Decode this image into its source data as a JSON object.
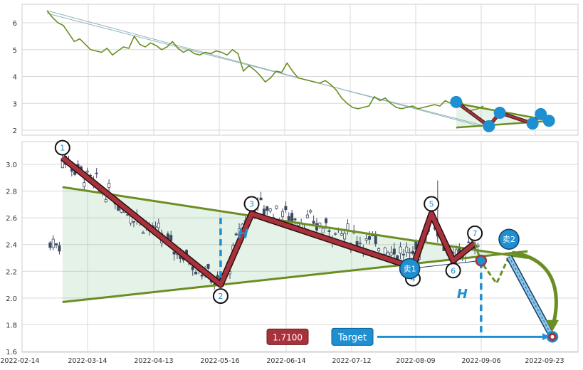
{
  "chart_data": [
    {
      "type": "line",
      "panel": "overview",
      "ylim": [
        1.8,
        6.6
      ],
      "y_ticks": [
        "2",
        "3",
        "4",
        "5",
        "6"
      ],
      "grid": true,
      "series": [
        {
          "color": "#6b8e23",
          "points": [
            [
              0,
              6.45
            ],
            [
              2,
              6.2
            ],
            [
              4,
              6.0
            ],
            [
              6,
              5.9
            ],
            [
              8,
              5.6
            ],
            [
              10,
              5.3
            ],
            [
              12,
              5.4
            ],
            [
              14,
              5.2
            ],
            [
              16,
              5.0
            ],
            [
              18,
              4.95
            ],
            [
              20,
              4.9
            ],
            [
              22,
              5.05
            ],
            [
              24,
              4.8
            ],
            [
              26,
              4.95
            ],
            [
              28,
              5.1
            ],
            [
              30,
              5.05
            ],
            [
              32,
              5.5
            ],
            [
              34,
              5.2
            ],
            [
              36,
              5.1
            ],
            [
              38,
              5.25
            ],
            [
              40,
              5.15
            ],
            [
              42,
              5.0
            ],
            [
              44,
              5.1
            ],
            [
              46,
              5.3
            ],
            [
              48,
              5.05
            ],
            [
              50,
              4.9
            ],
            [
              52,
              5.0
            ],
            [
              54,
              4.85
            ],
            [
              56,
              4.8
            ],
            [
              58,
              4.9
            ],
            [
              60,
              4.85
            ],
            [
              62,
              4.95
            ],
            [
              64,
              4.9
            ],
            [
              66,
              4.8
            ],
            [
              68,
              5.0
            ],
            [
              70,
              4.85
            ],
            [
              72,
              4.2
            ],
            [
              74,
              4.4
            ],
            [
              76,
              4.25
            ],
            [
              78,
              4.05
            ],
            [
              80,
              3.8
            ],
            [
              82,
              3.95
            ],
            [
              84,
              4.2
            ],
            [
              86,
              4.15
            ],
            [
              88,
              4.5
            ],
            [
              90,
              4.2
            ],
            [
              92,
              3.95
            ],
            [
              94,
              3.9
            ],
            [
              96,
              3.85
            ],
            [
              98,
              3.8
            ],
            [
              100,
              3.75
            ],
            [
              102,
              3.85
            ],
            [
              104,
              3.7
            ],
            [
              106,
              3.5
            ],
            [
              108,
              3.2
            ],
            [
              110,
              3.0
            ],
            [
              112,
              2.85
            ],
            [
              114,
              2.8
            ],
            [
              116,
              2.85
            ],
            [
              118,
              2.9
            ],
            [
              120,
              3.25
            ],
            [
              122,
              3.1
            ],
            [
              124,
              3.2
            ],
            [
              126,
              3.0
            ],
            [
              128,
              2.85
            ],
            [
              130,
              2.8
            ],
            [
              132,
              2.85
            ],
            [
              134,
              2.9
            ],
            [
              136,
              2.8
            ],
            [
              138,
              2.85
            ],
            [
              140,
              2.9
            ],
            [
              142,
              2.95
            ],
            [
              144,
              2.9
            ],
            [
              146,
              3.1
            ],
            [
              148,
              3.0
            ],
            [
              150,
              2.95
            ],
            [
              152,
              3.05
            ],
            [
              154,
              2.7
            ],
            [
              156,
              2.75
            ],
            [
              158,
              2.8
            ],
            [
              160,
              2.9
            ]
          ]
        }
      ],
      "trendlines": [
        {
          "from": [
            0,
            6.45
          ],
          "to": [
            157,
            2.2
          ],
          "color": "#8fb3b8"
        },
        {
          "from": [
            0,
            6.35
          ],
          "to": [
            159,
            2.2
          ],
          "color": "#8fb3b8"
        }
      ],
      "triangle": {
        "upper": [
          [
            150,
            3.0
          ],
          [
            185,
            2.35
          ]
        ],
        "lower": [
          [
            150,
            2.1
          ],
          [
            185,
            2.35
          ]
        ],
        "color": "#6b8e23"
      },
      "zigzag": [
        [
          150,
          3.05
        ],
        [
          162,
          2.15
        ],
        [
          166,
          2.65
        ],
        [
          178,
          2.25
        ],
        [
          181,
          2.6
        ],
        [
          184,
          2.35
        ]
      ],
      "markers": [
        [
          150,
          3.05
        ],
        [
          162,
          2.15
        ],
        [
          166,
          2.65
        ],
        [
          178,
          2.25
        ],
        [
          181,
          2.6
        ],
        [
          184,
          2.35
        ]
      ]
    },
    {
      "type": "candlestick",
      "panel": "main",
      "x_ticks": [
        "2022-02-14",
        "2022-03-14",
        "2022-04-13",
        "2022-05-16",
        "2022-06-14",
        "2022-07-12",
        "2022-08-09",
        "2022-09-06",
        "2022-09-23"
      ],
      "y_ticks": [
        "1.6",
        "1.8",
        "2.0",
        "2.2",
        "2.4",
        "2.6",
        "2.8",
        "3.0"
      ],
      "ylim": [
        1.6,
        3.15
      ],
      "grid": true,
      "zigzag": [
        {
          "label": "1",
          "x": 5,
          "y": 3.05
        },
        {
          "label": "2",
          "x": 56,
          "y": 2.1
        },
        {
          "label": "3",
          "x": 66,
          "y": 2.63
        },
        {
          "label": "4",
          "x": 118,
          "y": 2.23
        },
        {
          "label": "5",
          "x": 124,
          "y": 2.63
        },
        {
          "label": "6",
          "x": 131,
          "y": 2.28
        },
        {
          "label": "7",
          "x": 138,
          "y": 2.41
        }
      ],
      "triangle_upper": [
        [
          5,
          2.83
        ],
        [
          155,
          2.3
        ]
      ],
      "triangle_lower": [
        [
          5,
          1.97
        ],
        [
          155,
          2.35
        ]
      ],
      "h_label": "H",
      "projection_points": [
        [
          138,
          2.41
        ],
        [
          140,
          2.27
        ],
        [
          145,
          2.11
        ],
        [
          149,
          2.31
        ],
        [
          163,
          1.71
        ]
      ],
      "sell1": {
        "label": "卖1",
        "x": 117,
        "y": 2.22
      },
      "sell2": {
        "label": "卖2",
        "x": 149,
        "y": 2.44
      },
      "target_point": {
        "x": 163,
        "y": 1.71
      },
      "price_label": "1.7100",
      "target_label": "Target",
      "candle_color": "#3e4a62"
    }
  ]
}
